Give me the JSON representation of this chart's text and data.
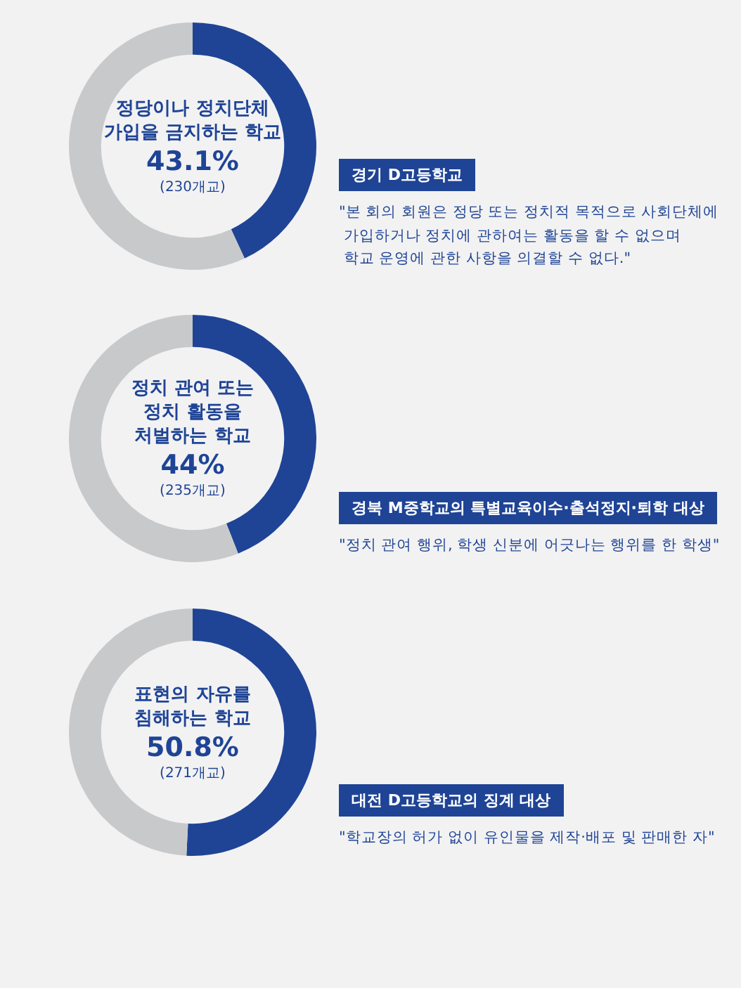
{
  "chart_data": [
    {
      "type": "donut",
      "title": "정당이나 정치단체\n가입을 금지하는 학교",
      "categories": [
        null,
        null
      ],
      "values": [
        43.1,
        56.9
      ],
      "colors": [
        "#1f4496",
        "#c8c9cb"
      ],
      "annotations": [
        "43.1%",
        "(230개교)",
        "경기 D고등학교",
        "\"본 회의 회원은 정당 또는 정치적 목적으로 사회단체에\n 가입하거나 정치에 관하여는 활동을 할 수 없으며\n 학교 운영에 관한 사항을 의결할 수 없다.\""
      ],
      "legend": false
    },
    {
      "type": "donut",
      "title": "정치 관여 또는\n정치 활동을\n처벌하는 학교",
      "categories": [
        null,
        null
      ],
      "values": [
        44,
        56
      ],
      "colors": [
        "#1f4496",
        "#c8c9cb"
      ],
      "annotations": [
        "44%",
        "(235개교)",
        "경북 M중학교의 특별교육이수·출석정지·퇴학 대상",
        "\"정치 관여 행위, 학생 신분에 어긋나는 행위를 한 학생\""
      ],
      "legend": false
    },
    {
      "type": "donut",
      "title": "표현의 자유를\n침해하는 학교",
      "categories": [
        null,
        null
      ],
      "values": [
        50.8,
        49.2
      ],
      "colors": [
        "#1f4496",
        "#c8c9cb"
      ],
      "annotations": [
        "50.8%",
        "(271개교)",
        "대전 D고등학교의 징계 대상",
        "\"학교장의 허가 없이 유인물을 제작·배포 및 판매한 자\""
      ],
      "legend": false
    }
  ]
}
